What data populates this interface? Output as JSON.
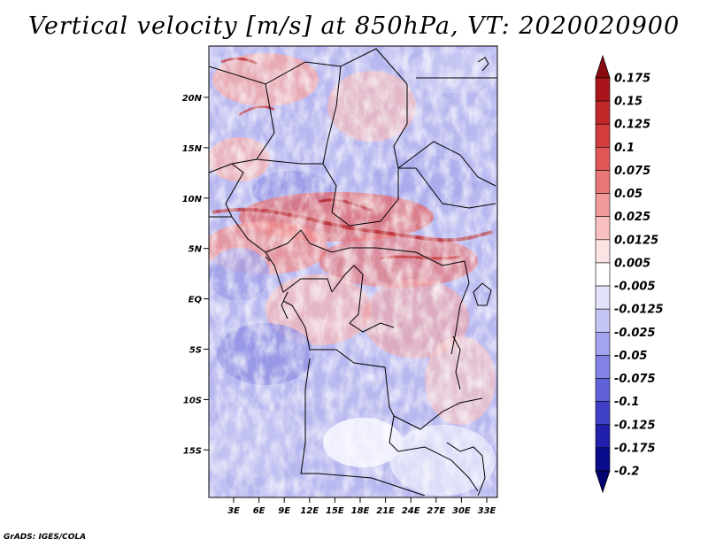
{
  "title": "Vertical velocity [m/s] at 850hPa, VT: 2020020900",
  "credit": "GrADS: IGES/COLA",
  "map": {
    "variable": "Vertical velocity",
    "units": "m/s",
    "level": "850hPa",
    "valid_time": "2020020900",
    "lon_labels": [
      "3E",
      "6E",
      "9E",
      "12E",
      "15E",
      "18E",
      "21E",
      "24E",
      "27E",
      "30E",
      "33E"
    ],
    "lat_labels": [
      "20N",
      "15N",
      "10N",
      "5N",
      "EQ",
      "5S",
      "10S",
      "15S"
    ]
  },
  "colorbar": {
    "labels": [
      "0.175",
      "0.15",
      "0.125",
      "0.1",
      "0.075",
      "0.05",
      "0.025",
      "0.0125",
      "0.005",
      "-0.005",
      "-0.0125",
      "-0.025",
      "-0.05",
      "-0.075",
      "-0.1",
      "-0.125",
      "-0.175",
      "-0.2"
    ],
    "colors": [
      "#8b0a10",
      "#a81419",
      "#c0282a",
      "#d23c3c",
      "#e05555",
      "#e87676",
      "#f09a9a",
      "#f8c0c0",
      "#fce4e4",
      "#ffffff",
      "#e2e2fb",
      "#c6c6f5",
      "#a4a4ee",
      "#8282e4",
      "#6060d8",
      "#4040c6",
      "#2020ac",
      "#0a0a8c",
      "#00006e"
    ]
  }
}
